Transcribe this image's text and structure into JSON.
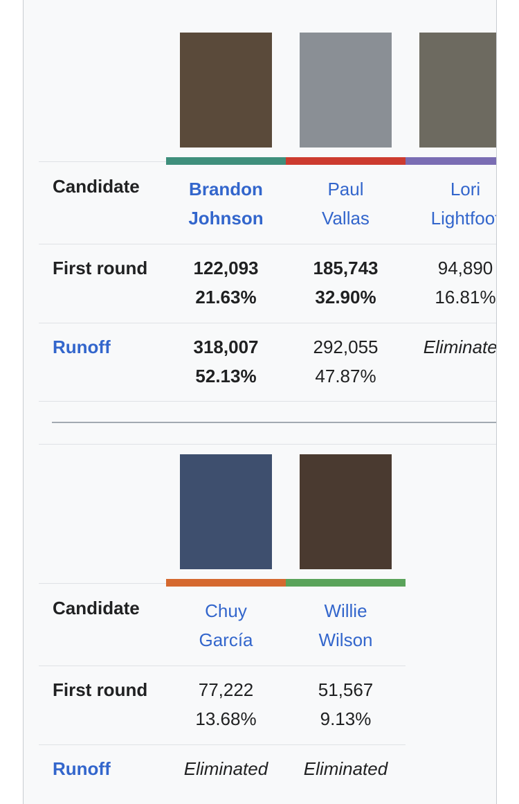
{
  "tables": [
    {
      "row_labels": {
        "candidate": "Candidate",
        "first_round": "First round",
        "runoff": "Runoff"
      },
      "candidates": [
        {
          "name": [
            "Brandon",
            "Johnson"
          ],
          "color": "#3f8f7c",
          "first_round": [
            "122,093",
            "21.63%"
          ],
          "runoff": [
            "318,007",
            "52.13%"
          ],
          "bold_name": true,
          "bold_first_round": true,
          "bold_runoff": true
        },
        {
          "name": [
            "Paul",
            "Vallas"
          ],
          "color": "#cc3b2f",
          "first_round": [
            "185,743",
            "32.90%"
          ],
          "runoff": [
            "292,055",
            "47.87%"
          ],
          "bold_name": false,
          "bold_first_round": true,
          "bold_runoff": false
        },
        {
          "name": [
            "Lori",
            "Lightfoot"
          ],
          "color": "#7a6db3",
          "first_round": [
            "94,890",
            "16.81%"
          ],
          "runoff": [
            "Eliminated"
          ],
          "bold_name": false,
          "bold_first_round": false,
          "bold_runoff": false
        }
      ]
    },
    {
      "row_labels": {
        "candidate": "Candidate",
        "first_round": "First round",
        "runoff": "Runoff"
      },
      "candidates": [
        {
          "name": [
            "Chuy",
            "García"
          ],
          "color": "#d5692f",
          "first_round": [
            "77,222",
            "13.68%"
          ],
          "runoff": [
            "Eliminated"
          ],
          "bold_name": false,
          "bold_first_round": false,
          "bold_runoff": false
        },
        {
          "name": [
            "Willie",
            "Wilson"
          ],
          "color": "#5aa35a",
          "first_round": [
            "51,567",
            "9.13%"
          ],
          "runoff": [
            "Eliminated"
          ],
          "bold_name": false,
          "bold_first_round": false,
          "bold_runoff": false
        }
      ]
    }
  ]
}
